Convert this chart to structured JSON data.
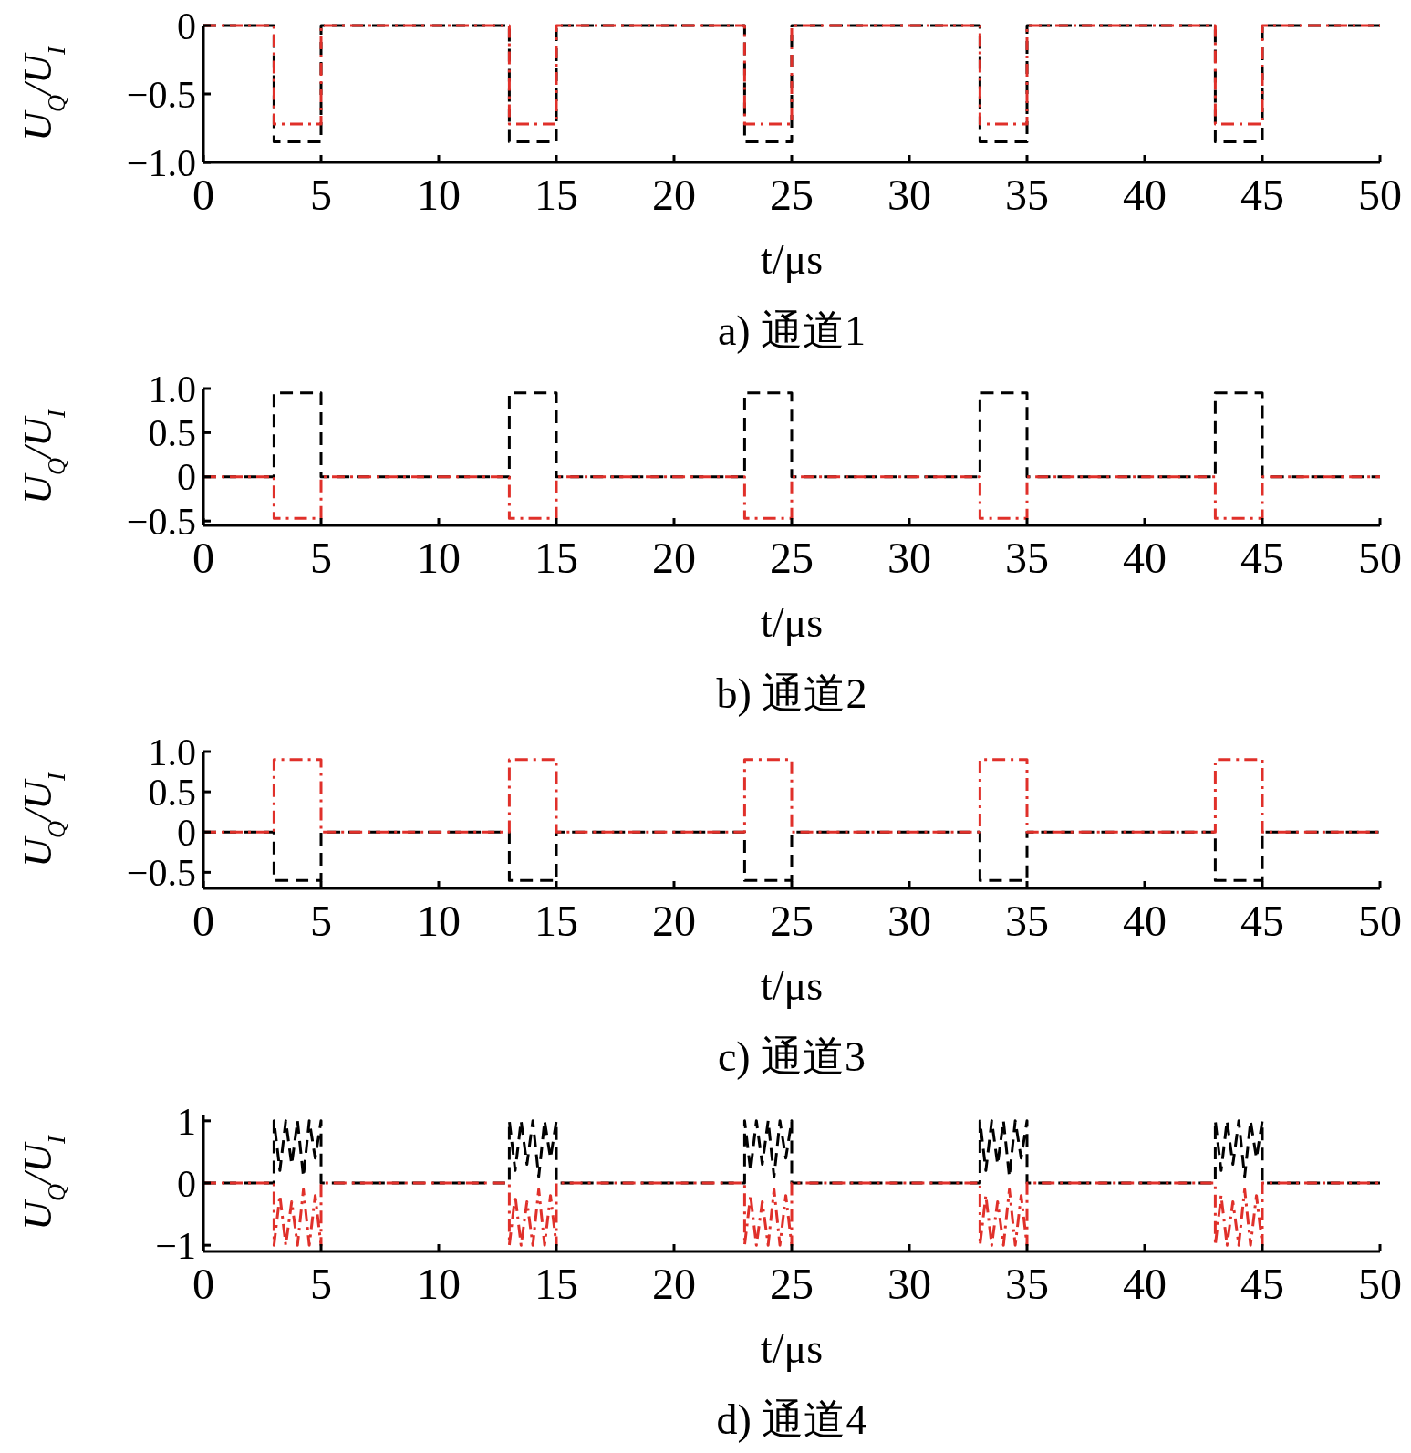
{
  "chart_data": [
    {
      "type": "line",
      "title": "a) 通道1",
      "xlabel": "t/μs",
      "ylabel": "U$_{Q}$/U$_{I}$",
      "xlim": [
        0,
        50
      ],
      "xticks": [
        0,
        5,
        10,
        15,
        20,
        25,
        30,
        35,
        40,
        45,
        50
      ],
      "ylim": [
        -1,
        0
      ],
      "yticks": [
        {
          "value": 0,
          "label": "0"
        },
        {
          "value": -0.5,
          "label": "−0.5"
        },
        {
          "value": -1,
          "label": "−1.0"
        }
      ],
      "grid": false,
      "series": [
        {
          "color": "#000000",
          "line_style": "dashed",
          "x": [
            0,
            3,
            3,
            5,
            5,
            13,
            13,
            15,
            15,
            23,
            23,
            25,
            25,
            33,
            33,
            35,
            35,
            43,
            43,
            45,
            45,
            50
          ],
          "values": [
            0,
            0,
            -0.85,
            -0.85,
            0,
            0,
            -0.85,
            -0.85,
            0,
            0,
            -0.85,
            -0.85,
            0,
            0,
            -0.85,
            -0.85,
            0,
            0,
            -0.85,
            -0.85,
            0,
            0
          ]
        },
        {
          "color": "#e0302a",
          "line_style": "dashdot",
          "x": [
            0,
            3,
            3,
            5,
            5,
            13,
            13,
            15,
            15,
            23,
            23,
            25,
            25,
            33,
            33,
            35,
            35,
            43,
            43,
            45,
            45,
            50
          ],
          "values": [
            0,
            0,
            -0.72,
            -0.72,
            0,
            0,
            -0.72,
            -0.72,
            0,
            0,
            -0.72,
            -0.72,
            0,
            0,
            -0.72,
            -0.72,
            0,
            0,
            -0.72,
            -0.72,
            0,
            0
          ]
        }
      ]
    },
    {
      "type": "line",
      "title": "b) 通道2",
      "xlabel": "t/μs",
      "ylabel": "U$_{Q}$/U$_{I}$",
      "xlim": [
        0,
        50
      ],
      "xticks": [
        0,
        5,
        10,
        15,
        20,
        25,
        30,
        35,
        40,
        45,
        50
      ],
      "ylim": [
        -0.55,
        1.0
      ],
      "yticks": [
        {
          "value": 1,
          "label": "1.0"
        },
        {
          "value": 0.5,
          "label": "0.5"
        },
        {
          "value": 0,
          "label": "0"
        },
        {
          "value": -0.5,
          "label": "−0.5"
        }
      ],
      "grid": false,
      "series": [
        {
          "color": "#000000",
          "line_style": "dashed",
          "x": [
            0,
            3,
            3,
            5,
            5,
            13,
            13,
            15,
            15,
            23,
            23,
            25,
            25,
            33,
            33,
            35,
            35,
            43,
            43,
            45,
            45,
            50
          ],
          "values": [
            0,
            0,
            0.95,
            0.95,
            0,
            0,
            0.95,
            0.95,
            0,
            0,
            0.95,
            0.95,
            0,
            0,
            0.95,
            0.95,
            0,
            0,
            0.95,
            0.95,
            0,
            0
          ]
        },
        {
          "color": "#e0302a",
          "line_style": "dashdot",
          "x": [
            0,
            3,
            3,
            5,
            5,
            13,
            13,
            15,
            15,
            23,
            23,
            25,
            25,
            33,
            33,
            35,
            35,
            43,
            43,
            45,
            45,
            50
          ],
          "values": [
            0,
            0,
            -0.47,
            -0.47,
            0,
            0,
            -0.47,
            -0.47,
            0,
            0,
            -0.47,
            -0.47,
            0,
            0,
            -0.47,
            -0.47,
            0,
            0,
            -0.47,
            -0.47,
            0,
            0
          ]
        }
      ]
    },
    {
      "type": "line",
      "title": "c) 通道3",
      "xlabel": "t/μs",
      "ylabel": "U$_{Q}$/U$_{I}$",
      "xlim": [
        0,
        50
      ],
      "xticks": [
        0,
        5,
        10,
        15,
        20,
        25,
        30,
        35,
        40,
        45,
        50
      ],
      "ylim": [
        -0.7,
        1.0
      ],
      "yticks": [
        {
          "value": 1,
          "label": "1.0"
        },
        {
          "value": 0.5,
          "label": "0.5"
        },
        {
          "value": 0,
          "label": "0"
        },
        {
          "value": -0.5,
          "label": "−0.5"
        }
      ],
      "grid": false,
      "series": [
        {
          "color": "#000000",
          "line_style": "dashed",
          "x": [
            0,
            3,
            3,
            5,
            5,
            13,
            13,
            15,
            15,
            23,
            23,
            25,
            25,
            33,
            33,
            35,
            35,
            43,
            43,
            45,
            45,
            50
          ],
          "values": [
            0,
            0,
            -0.6,
            -0.6,
            0,
            0,
            -0.6,
            -0.6,
            0,
            0,
            -0.6,
            -0.6,
            0,
            0,
            -0.6,
            -0.6,
            0,
            0,
            -0.6,
            -0.6,
            0,
            0
          ]
        },
        {
          "color": "#e0302a",
          "line_style": "dashdot",
          "x": [
            0,
            3,
            3,
            5,
            5,
            13,
            13,
            15,
            15,
            23,
            23,
            25,
            25,
            33,
            33,
            35,
            35,
            43,
            43,
            45,
            45,
            50
          ],
          "values": [
            0,
            0,
            0.9,
            0.9,
            0,
            0,
            0.9,
            0.9,
            0,
            0,
            0.9,
            0.9,
            0,
            0,
            0.9,
            0.9,
            0,
            0,
            0.9,
            0.9,
            0,
            0
          ]
        }
      ]
    },
    {
      "type": "line",
      "title": "d) 通道4",
      "xlabel": "t/μs",
      "ylabel": "U$_{Q}$/U$_{I}$",
      "xlim": [
        0,
        50
      ],
      "xticks": [
        0,
        5,
        10,
        15,
        20,
        25,
        30,
        35,
        40,
        45,
        50
      ],
      "ylim": [
        -1.1,
        1.1
      ],
      "yticks": [
        {
          "value": 1,
          "label": "1"
        },
        {
          "value": 0,
          "label": "0"
        },
        {
          "value": -1,
          "label": "−1"
        }
      ],
      "grid": false,
      "series": [
        {
          "color": "#000000",
          "line_style": "dashed",
          "x": [
            0,
            3,
            3,
            3.25,
            3.5,
            3.75,
            4,
            4.25,
            4.5,
            4.75,
            5,
            5,
            13,
            13,
            13.25,
            13.5,
            13.75,
            14,
            14.25,
            14.5,
            14.75,
            15,
            15,
            23,
            23,
            23.25,
            23.5,
            23.75,
            24,
            24.25,
            24.5,
            24.75,
            25,
            25,
            33,
            33,
            33.25,
            33.5,
            33.75,
            34,
            34.25,
            34.5,
            34.75,
            35,
            35,
            43,
            43,
            43.25,
            43.5,
            43.75,
            44,
            44.25,
            44.5,
            44.75,
            45,
            45,
            50
          ],
          "values": [
            0,
            0,
            1,
            0.2,
            1,
            0.3,
            1,
            0.1,
            1,
            0.4,
            1,
            0,
            0,
            1,
            0.2,
            1,
            0.3,
            1,
            0.1,
            1,
            0.4,
            1,
            0,
            0,
            1,
            0.2,
            1,
            0.3,
            1,
            0.1,
            1,
            0.4,
            1,
            0,
            0,
            1,
            0.2,
            1,
            0.3,
            1,
            0.1,
            1,
            0.4,
            1,
            0,
            0,
            1,
            0.2,
            1,
            0.3,
            1,
            0.1,
            1,
            0.4,
            1,
            0,
            0
          ]
        },
        {
          "color": "#e0302a",
          "line_style": "dashdot",
          "x": [
            0,
            3,
            3,
            3.25,
            3.5,
            3.75,
            4,
            4.25,
            4.5,
            4.75,
            5,
            5,
            13,
            13,
            13.25,
            13.5,
            13.75,
            14,
            14.25,
            14.5,
            14.75,
            15,
            15,
            23,
            23,
            23.25,
            23.5,
            23.75,
            24,
            24.25,
            24.5,
            24.75,
            25,
            25,
            33,
            33,
            33.25,
            33.5,
            33.75,
            34,
            34.25,
            34.5,
            34.75,
            35,
            35,
            43,
            43,
            43.25,
            43.5,
            43.75,
            44,
            44.25,
            44.5,
            44.75,
            45,
            45,
            50
          ],
          "values": [
            0,
            0,
            -1,
            -0.2,
            -1,
            -0.3,
            -1,
            -0.1,
            -1,
            -0.2,
            -1,
            0,
            0,
            -1,
            -0.2,
            -1,
            -0.3,
            -1,
            -0.1,
            -1,
            -0.2,
            -1,
            0,
            0,
            -1,
            -0.2,
            -1,
            -0.3,
            -1,
            -0.1,
            -1,
            -0.2,
            -1,
            0,
            0,
            -1,
            -0.2,
            -1,
            -0.3,
            -1,
            -0.1,
            -1,
            -0.2,
            -1,
            0,
            0,
            -1,
            -0.2,
            -1,
            -0.3,
            -1,
            -0.1,
            -1,
            -0.2,
            -1,
            0,
            0
          ]
        }
      ]
    }
  ]
}
